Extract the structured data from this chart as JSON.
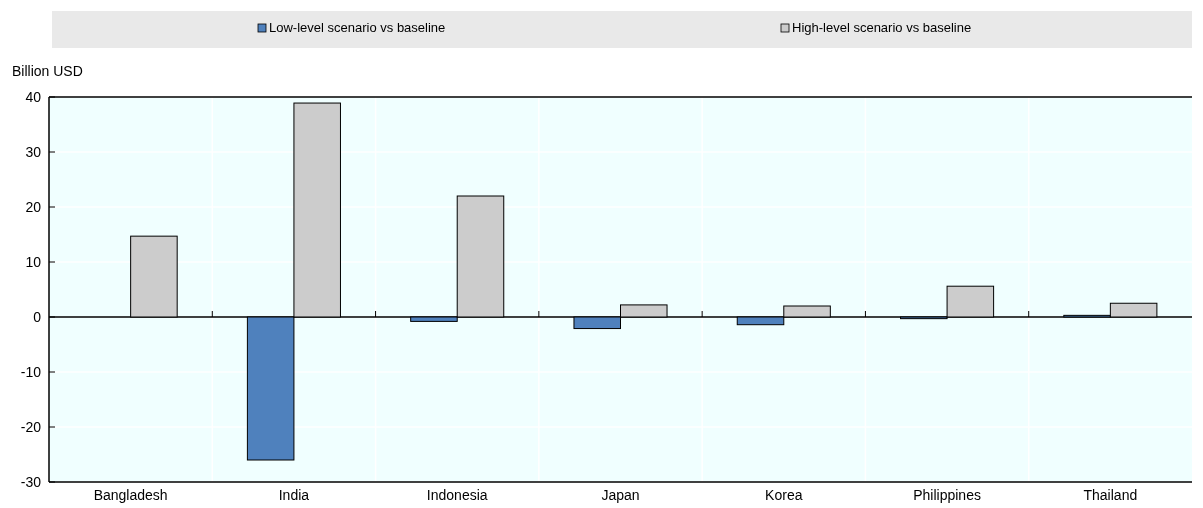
{
  "chart_data": {
    "type": "bar",
    "ylabel": "Billion USD",
    "categories": [
      "Bangladesh",
      "India",
      "Indonesia",
      "Japan",
      "Korea",
      "Philippines",
      "Thailand"
    ],
    "series": [
      {
        "name": "Low-level scenario vs baseline",
        "color": "#4f81bd",
        "values": [
          0,
          -26,
          -0.8,
          -2.1,
          -1.4,
          -0.3,
          0.3
        ]
      },
      {
        "name": "High-level scenario vs baseline",
        "color": "#cccccc",
        "values": [
          14.7,
          38.9,
          22,
          2.2,
          2,
          5.6,
          2.5
        ]
      }
    ],
    "ylim": [
      -30,
      40
    ],
    "yticks": [
      -30,
      -20,
      -10,
      0,
      10,
      20,
      30,
      40
    ],
    "grid": true,
    "legend": "top"
  }
}
